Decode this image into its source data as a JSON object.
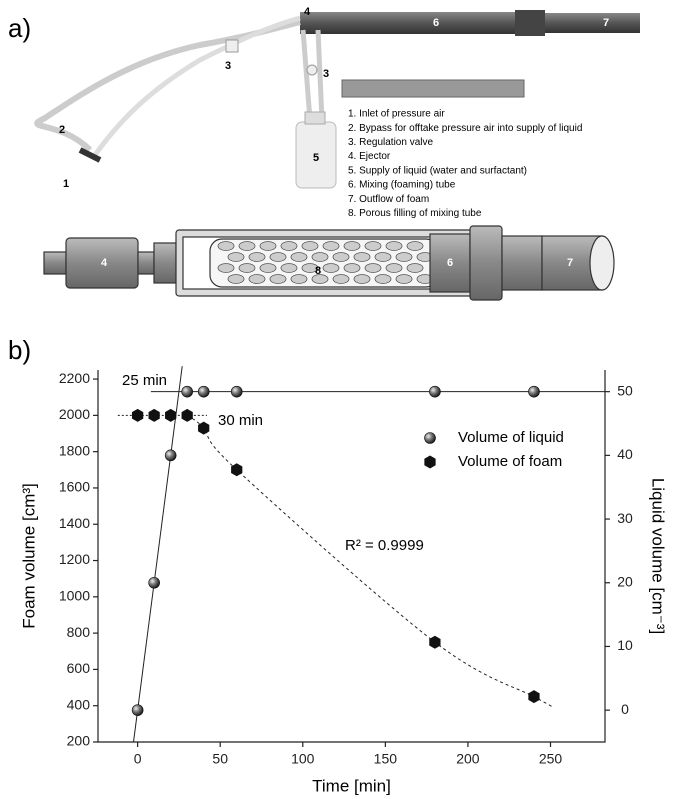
{
  "panel_a": {
    "label": "a)",
    "photo_labels": [
      "1",
      "2",
      "3",
      "3",
      "4",
      "5",
      "6",
      "7"
    ],
    "legend": [
      "1.    Inlet of pressure air",
      "2.    Bypass for offtake pressure air into supply of liquid",
      "3.    Regulation  valve",
      "4.    Ejector",
      "5.    Supply of liquid (water and surfactant)",
      "6.    Mixing (foaming) tube",
      "7.    Outflow of foam",
      "8.    Porous filling of mixing tube"
    ],
    "schematic_labels": [
      "4",
      "8",
      "6",
      "7"
    ]
  },
  "panel_b_label": "b)",
  "chart_data": {
    "type": "scatter",
    "x_label": "Time [min]",
    "y_label": "Foam volume [cm³]",
    "y2_label": "Liquid volume [cm⁻³]",
    "xlim": [
      -24,
      283
    ],
    "xticks": [
      0,
      50,
      100,
      150,
      200,
      250
    ],
    "ylim": [
      200,
      2250
    ],
    "yticks": [
      200,
      400,
      600,
      800,
      1000,
      1200,
      1400,
      1600,
      1800,
      2000,
      2200
    ],
    "y2lim": [
      -5,
      53.4
    ],
    "y2ticks": [
      0,
      10,
      20,
      30,
      40,
      50
    ],
    "legend": "upper right",
    "annotations": [
      "25 min",
      "30 min",
      "R² = 0.9999"
    ],
    "series": [
      {
        "name": "Volume of liquid",
        "marker": "sphere",
        "axis": "y2",
        "color": "#111111",
        "x": [
          0,
          10,
          20,
          30,
          40,
          60,
          180,
          240
        ],
        "values": [
          0,
          20,
          40,
          50,
          50,
          50,
          50,
          50
        ]
      },
      {
        "name": "Volume of foam",
        "marker": "hexagon",
        "color": "#111111",
        "x": [
          0,
          10,
          20,
          30,
          40,
          60,
          180,
          240
        ],
        "values": [
          2000,
          2000,
          2000,
          2000,
          1930,
          1700,
          750,
          450
        ]
      }
    ]
  }
}
